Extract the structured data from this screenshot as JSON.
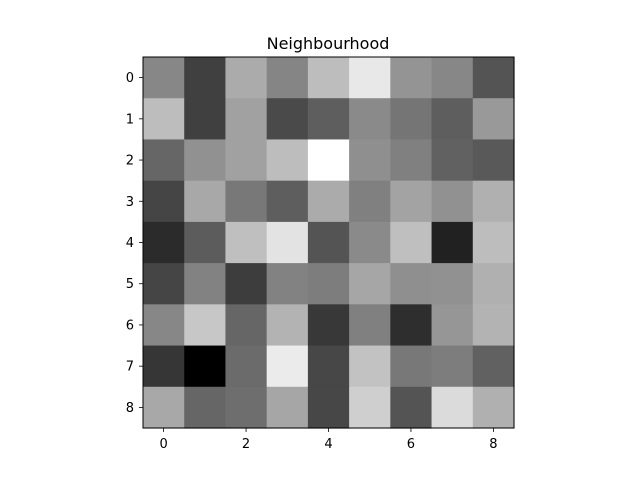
{
  "chart_data": {
    "type": "heatmap",
    "title": "Neighbourhood",
    "colormap": "gray",
    "x_ticks": [
      "0",
      "2",
      "4",
      "6",
      "8"
    ],
    "y_ticks": [
      "0",
      "1",
      "2",
      "3",
      "4",
      "5",
      "6",
      "7",
      "8"
    ],
    "xlim": [
      -0.5,
      8.5
    ],
    "ylim": [
      8.5,
      -0.5
    ],
    "value_range": [
      0,
      1
    ],
    "rows": [
      [
        0.53,
        0.25,
        0.67,
        0.52,
        0.74,
        0.91,
        0.58,
        0.53,
        0.33
      ],
      [
        0.74,
        0.25,
        0.63,
        0.29,
        0.37,
        0.54,
        0.46,
        0.37,
        0.6
      ],
      [
        0.4,
        0.57,
        0.63,
        0.74,
        1.0,
        0.56,
        0.5,
        0.38,
        0.35
      ],
      [
        0.27,
        0.66,
        0.47,
        0.37,
        0.67,
        0.5,
        0.64,
        0.57,
        0.69
      ],
      [
        0.17,
        0.36,
        0.75,
        0.89,
        0.33,
        0.54,
        0.75,
        0.13,
        0.74
      ],
      [
        0.27,
        0.51,
        0.24,
        0.51,
        0.49,
        0.65,
        0.56,
        0.57,
        0.69
      ],
      [
        0.53,
        0.78,
        0.4,
        0.7,
        0.22,
        0.5,
        0.18,
        0.59,
        0.7
      ],
      [
        0.21,
        0.0,
        0.42,
        0.92,
        0.28,
        0.76,
        0.47,
        0.49,
        0.38
      ],
      [
        0.66,
        0.4,
        0.43,
        0.65,
        0.28,
        0.81,
        0.33,
        0.86,
        0.69
      ]
    ]
  }
}
